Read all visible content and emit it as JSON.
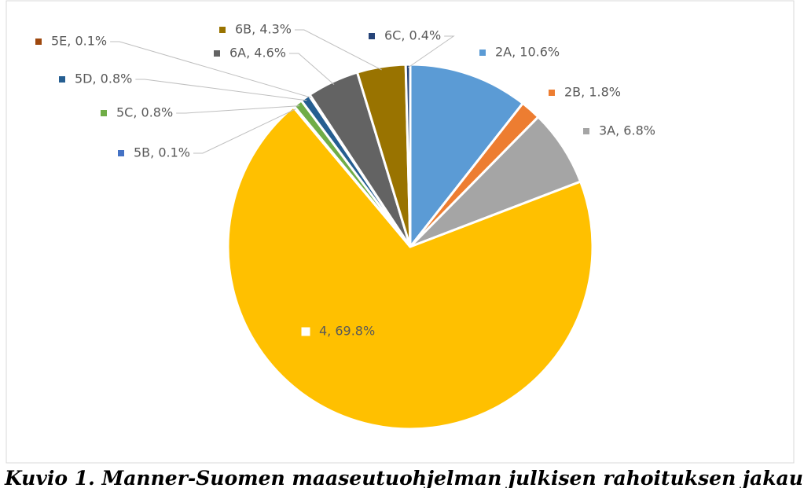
{
  "chart_data": {
    "type": "pie",
    "values": [
      10.6,
      1.8,
      6.8,
      69.8,
      0.1,
      0.8,
      0.8,
      0.1,
      4.6,
      4.3,
      0.4
    ],
    "value_labels": [
      "2A, 10.6%",
      "2B, 1.8%",
      "3A, 6.8%",
      "4, 69.8%",
      "5B, 0.1%",
      "5C, 0.8%",
      "5D, 0.8%",
      "5E, 0.1%",
      "6A, 4.6%",
      "6B, 4.3%",
      "6C, 0.4%"
    ],
    "colors": [
      "#5b9bd5",
      "#ed7d31",
      "#a5a5a5",
      "#ffc000",
      "#4472c4",
      "#70ad47",
      "#255e91",
      "#9e480e",
      "#636363",
      "#997300",
      "#264478"
    ],
    "caption": "Kuvio 1. Manner-Suomen maaseutuohjelman julkisen rahoituksen jakau-"
  }
}
